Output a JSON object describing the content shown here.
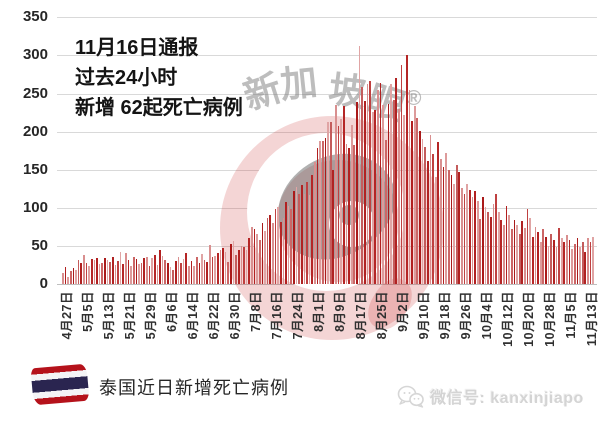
{
  "annotation": {
    "lines": [
      "11月16日通报",
      "过去24小时",
      "新增 62起死亡病例"
    ]
  },
  "watermark": {
    "chars": [
      "新",
      "加",
      "坡",
      "眼"
    ],
    "registered": "®"
  },
  "footer": {
    "title": "泰国近日新增死亡病例",
    "flag": "thailand-flag",
    "wechat_label": "微信号: kanxinjiapo"
  },
  "chart_data": {
    "type": "bar",
    "title": "泰国近日新增死亡病例",
    "xlabel": "",
    "ylabel": "",
    "ylim": [
      0,
      350
    ],
    "grid": "horizontal",
    "legend": "none",
    "y_ticks": [
      0,
      50,
      100,
      150,
      200,
      250,
      300,
      350
    ],
    "x_tick_labels": [
      "4月27日",
      "5月5日",
      "5月13日",
      "5月21日",
      "5月29日",
      "6月6日",
      "6月14日",
      "6月22日",
      "6月30日",
      "7月8日",
      "7月16日",
      "7月24日",
      "8月1日",
      "8月9日",
      "8月17日",
      "8月25日",
      "9月2日",
      "9月10日",
      "9月18日",
      "9月26日",
      "10月4日",
      "10月12日",
      "10月20日",
      "10月28日",
      "11月5日",
      "11月13日"
    ],
    "x_tick_every": 8,
    "start_date": "4月27日",
    "end_date": "11月15日",
    "bar_palette": [
      "#d98f8f",
      "#b22020",
      "#dd9b9b",
      "#cc6666",
      "#aa1a1a",
      "#e0a4a4",
      "#c45c5c",
      "#b02222",
      "#d98f8f",
      "#bf4040",
      "#e0a4a4",
      "#b52626"
    ],
    "series": [
      {
        "name": "每日新增死亡病例",
        "values": [
          15,
          22,
          9,
          17,
          21,
          18,
          31,
          27,
          38,
          27,
          24,
          33,
          31,
          34,
          26,
          28,
          34,
          32,
          29,
          35,
          25,
          30,
          42,
          26,
          41,
          32,
          24,
          36,
          33,
          26,
          28,
          34,
          36,
          24,
          34,
          38,
          25,
          44,
          37,
          31,
          28,
          22,
          19,
          30,
          35,
          28,
          33,
          41,
          24,
          30,
          23,
          35,
          28,
          39,
          32,
          29,
          51,
          36,
          37,
          41,
          44,
          47,
          42,
          29,
          53,
          57,
          38,
          44,
          50,
          49,
          44,
          61,
          75,
          72,
          65,
          58,
          80,
          69,
          87,
          91,
          80,
          98,
          101,
          81,
          87,
          108,
          103,
          98,
          122,
          127,
          118,
          130,
          118,
          134,
          117,
          143,
          160,
          178,
          188,
          188,
          191,
          213,
          212,
          149,
          235,
          207,
          216,
          233,
          184,
          178,
          209,
          182,
          239,
          312,
          258,
          240,
          263,
          267,
          226,
          229,
          254,
          264,
          235,
          189,
          236,
          262,
          242,
          270,
          230,
          287,
          222,
          300,
          254,
          214,
          233,
          218,
          201,
          190,
          180,
          162,
          195,
          171,
          140,
          186,
          164,
          154,
          172,
          150,
          143,
          131,
          156,
          147,
          126,
          118,
          131,
          124,
          114,
          122,
          109,
          85,
          114,
          101,
          95,
          88,
          105,
          118,
          95,
          84,
          78,
          103,
          90,
          72,
          84,
          78,
          66,
          83,
          74,
          98,
          87,
          62,
          75,
          68,
          55,
          72,
          62,
          50,
          65,
          58,
          48,
          74,
          60,
          55,
          64,
          58,
          46,
          52,
          61,
          48,
          55,
          42,
          60,
          55,
          62
        ]
      }
    ]
  }
}
